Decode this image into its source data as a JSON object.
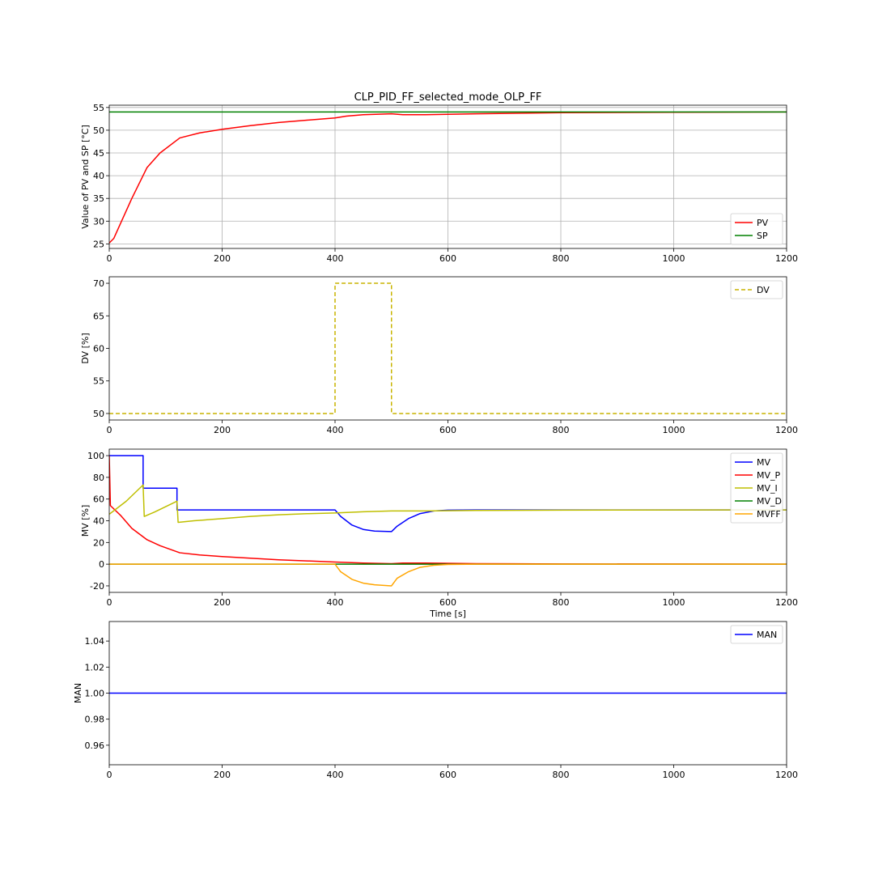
{
  "chart_data": [
    {
      "type": "line",
      "title": "CLP_PID_FF_selected_mode_OLP_FF",
      "xlabel": "",
      "ylabel": "Value of PV and SP [°C]",
      "xlim": [
        0,
        1200
      ],
      "ylim": [
        24,
        55.5
      ],
      "xticks": [
        0,
        200,
        400,
        600,
        800,
        1000,
        1200
      ],
      "yticks": [
        25,
        30,
        35,
        40,
        45,
        50,
        55
      ],
      "grid": true,
      "legend": "lower-right",
      "series": [
        {
          "name": "PV",
          "color": "#ff0000",
          "style": "solid",
          "points": [
            [
              0,
              25.2
            ],
            [
              8,
              26.2
            ],
            [
              20,
              29.5
            ],
            [
              40,
              35.0
            ],
            [
              67,
              41.8
            ],
            [
              90,
              45.0
            ],
            [
              125,
              48.3
            ],
            [
              160,
              49.4
            ],
            [
              200,
              50.2
            ],
            [
              250,
              51.0
            ],
            [
              300,
              51.7
            ],
            [
              350,
              52.2
            ],
            [
              400,
              52.7
            ],
            [
              420,
              53.1
            ],
            [
              450,
              53.4
            ],
            [
              500,
              53.6
            ],
            [
              520,
              53.4
            ],
            [
              560,
              53.4
            ],
            [
              650,
              53.6
            ],
            [
              800,
              53.85
            ],
            [
              1000,
              53.95
            ],
            [
              1200,
              54.0
            ]
          ]
        },
        {
          "name": "SP",
          "color": "#008000",
          "style": "solid",
          "points": [
            [
              0,
              54.0
            ],
            [
              1200,
              54.0
            ]
          ]
        }
      ]
    },
    {
      "type": "line",
      "title": "",
      "xlabel": "",
      "ylabel": "DV [%]",
      "xlim": [
        0,
        1200
      ],
      "ylim": [
        49,
        71
      ],
      "xticks": [
        0,
        200,
        400,
        600,
        800,
        1000,
        1200
      ],
      "yticks": [
        50,
        55,
        60,
        65,
        70
      ],
      "grid": false,
      "legend": "upper-right",
      "series": [
        {
          "name": "DV",
          "color": "#c8b400",
          "style": "dashed",
          "points": [
            [
              0,
              50
            ],
            [
              400,
              50
            ],
            [
              400,
              70
            ],
            [
              500,
              70
            ],
            [
              500,
              50
            ],
            [
              1200,
              50
            ]
          ]
        }
      ]
    },
    {
      "type": "line",
      "title": "",
      "xlabel": "Time [s]",
      "ylabel": "MV [%]",
      "xlim": [
        0,
        1200
      ],
      "ylim": [
        -26,
        106
      ],
      "xticks": [
        0,
        200,
        400,
        600,
        800,
        1000,
        1200
      ],
      "yticks": [
        -20,
        0,
        20,
        40,
        60,
        80,
        100
      ],
      "grid": false,
      "legend": "upper-right",
      "series": [
        {
          "name": "MV",
          "color": "#0000ff",
          "style": "solid",
          "points": [
            [
              0,
              100
            ],
            [
              60,
              100
            ],
            [
              60,
              70
            ],
            [
              120,
              70
            ],
            [
              120,
              50
            ],
            [
              400,
              50
            ],
            [
              410,
              44
            ],
            [
              430,
              36
            ],
            [
              450,
              32
            ],
            [
              470,
              30.5
            ],
            [
              500,
              30
            ],
            [
              510,
              35
            ],
            [
              530,
              42
            ],
            [
              550,
              46.5
            ],
            [
              575,
              49
            ],
            [
              600,
              49.8
            ],
            [
              650,
              50
            ],
            [
              1200,
              50
            ]
          ]
        },
        {
          "name": "MV_P",
          "color": "#ff0000",
          "style": "solid",
          "points": [
            [
              0,
              100
            ],
            [
              2,
              54
            ],
            [
              20,
              45
            ],
            [
              40,
              33
            ],
            [
              67,
              22.5
            ],
            [
              90,
              17
            ],
            [
              125,
              10.5
            ],
            [
              160,
              8.5
            ],
            [
              200,
              7
            ],
            [
              250,
              5.5
            ],
            [
              300,
              4
            ],
            [
              350,
              3
            ],
            [
              400,
              2
            ],
            [
              450,
              1
            ],
            [
              500,
              0.5
            ],
            [
              520,
              1
            ],
            [
              560,
              1
            ],
            [
              650,
              0.5
            ],
            [
              800,
              0.2
            ],
            [
              1200,
              0
            ]
          ]
        },
        {
          "name": "MV_I",
          "color": "#bfbf00",
          "style": "solid",
          "points": [
            [
              0,
              46
            ],
            [
              30,
              58
            ],
            [
              60,
              73
            ],
            [
              62,
              44
            ],
            [
              80,
              48
            ],
            [
              120,
              58
            ],
            [
              122,
              38.5
            ],
            [
              150,
              40
            ],
            [
              200,
              42
            ],
            [
              250,
              44
            ],
            [
              300,
              45.5
            ],
            [
              350,
              46.5
            ],
            [
              400,
              47.2
            ],
            [
              450,
              48.3
            ],
            [
              500,
              49
            ],
            [
              560,
              49
            ],
            [
              650,
              49.5
            ],
            [
              800,
              49.8
            ],
            [
              1200,
              50
            ]
          ]
        },
        {
          "name": "MV_D",
          "color": "#008000",
          "style": "solid",
          "points": [
            [
              0,
              0
            ],
            [
              1200,
              0
            ]
          ]
        },
        {
          "name": "MVFF",
          "color": "#ffa500",
          "style": "solid",
          "points": [
            [
              0,
              0
            ],
            [
              400,
              0
            ],
            [
              410,
              -7
            ],
            [
              430,
              -14
            ],
            [
              450,
              -17.5
            ],
            [
              470,
              -19
            ],
            [
              500,
              -20
            ],
            [
              510,
              -13
            ],
            [
              530,
              -7
            ],
            [
              550,
              -3
            ],
            [
              575,
              -1
            ],
            [
              600,
              -0.3
            ],
            [
              650,
              0
            ],
            [
              1200,
              0
            ]
          ]
        }
      ]
    },
    {
      "type": "line",
      "title": "",
      "xlabel": "",
      "ylabel": "MAN",
      "xlim": [
        0,
        1200
      ],
      "ylim": [
        0.945,
        1.055
      ],
      "xticks": [
        0,
        200,
        400,
        600,
        800,
        1000,
        1200
      ],
      "yticks": [
        0.96,
        0.98,
        1.0,
        1.02,
        1.04
      ],
      "ytick_labels": [
        "0.96",
        "0.98",
        "1.00",
        "1.02",
        "1.04"
      ],
      "grid": false,
      "legend": "upper-right",
      "series": [
        {
          "name": "MAN",
          "color": "#0000ff",
          "style": "solid",
          "points": [
            [
              0,
              1.0
            ],
            [
              1200,
              1.0
            ]
          ]
        }
      ]
    }
  ]
}
